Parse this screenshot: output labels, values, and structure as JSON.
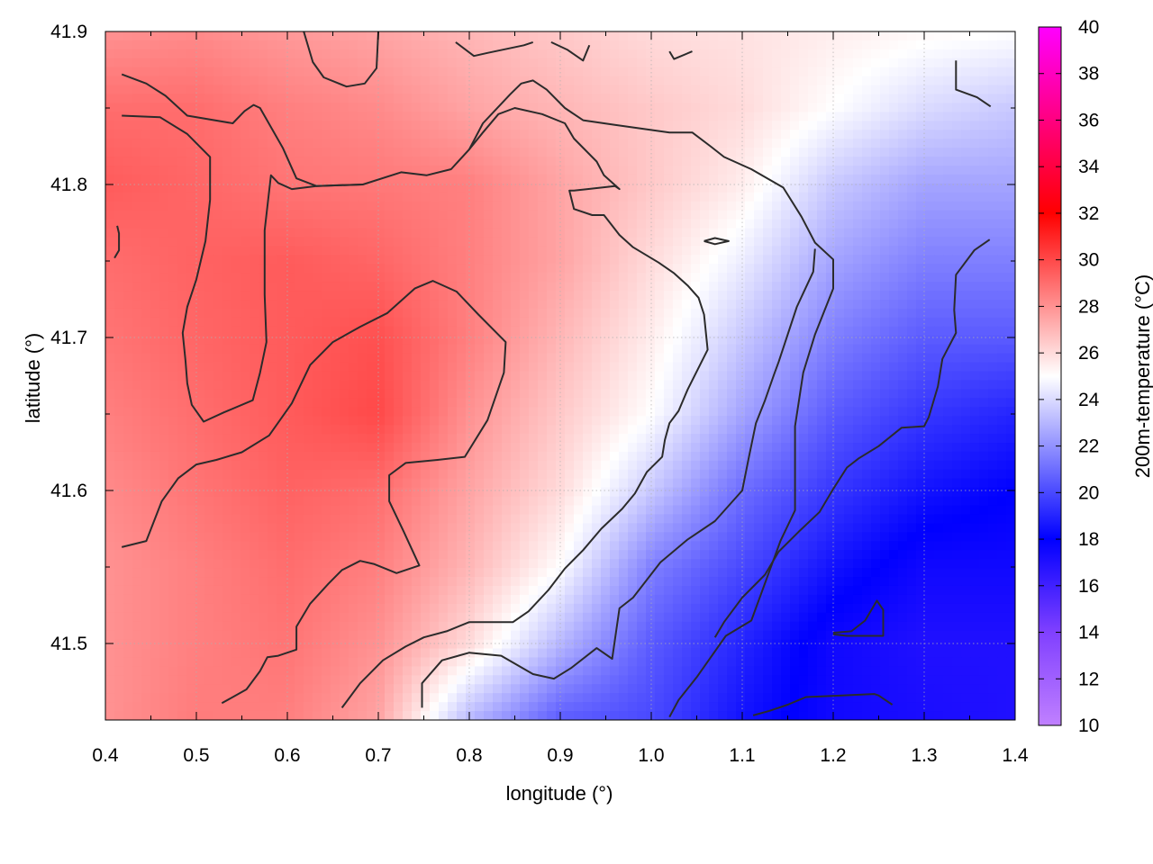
{
  "chart_data": {
    "type": "heatmap",
    "xlabel": "longitude (°)",
    "ylabel": "latitude (°)",
    "colorbar_label": "200m-temperature (°C)",
    "xlim": [
      0.4,
      1.4
    ],
    "ylim": [
      41.45,
      41.9
    ],
    "x_ticks": [
      {
        "value": 0.4,
        "label": "0.4"
      },
      {
        "value": 0.5,
        "label": "0.5"
      },
      {
        "value": 0.6,
        "label": "0.6"
      },
      {
        "value": 0.7,
        "label": "0.7"
      },
      {
        "value": 0.8,
        "label": "0.8"
      },
      {
        "value": 0.9,
        "label": "0.9"
      },
      {
        "value": 1.0,
        "label": "1.0"
      },
      {
        "value": 1.1,
        "label": "1.1"
      },
      {
        "value": 1.2,
        "label": "1.2"
      },
      {
        "value": 1.3,
        "label": "1.3"
      },
      {
        "value": 1.4,
        "label": "1.4"
      }
    ],
    "y_ticks": [
      {
        "value": 41.5,
        "label": "41.5"
      },
      {
        "value": 41.6,
        "label": "41.6"
      },
      {
        "value": 41.7,
        "label": "41.7"
      },
      {
        "value": 41.8,
        "label": "41.8"
      },
      {
        "value": 41.9,
        "label": "41.9"
      }
    ],
    "colorbar": {
      "range": [
        10,
        40
      ],
      "ticks": [
        {
          "value": 10,
          "label": "10"
        },
        {
          "value": 12,
          "label": "12"
        },
        {
          "value": 14,
          "label": "14"
        },
        {
          "value": 16,
          "label": "16"
        },
        {
          "value": 18,
          "label": "18"
        },
        {
          "value": 20,
          "label": "20"
        },
        {
          "value": 22,
          "label": "22"
        },
        {
          "value": 24,
          "label": "24"
        },
        {
          "value": 26,
          "label": "26"
        },
        {
          "value": 28,
          "label": "28"
        },
        {
          "value": 30,
          "label": "30"
        },
        {
          "value": 32,
          "label": "32"
        },
        {
          "value": 34,
          "label": "34"
        },
        {
          "value": 36,
          "label": "36"
        },
        {
          "value": 38,
          "label": "38"
        },
        {
          "value": 40,
          "label": "40"
        }
      ],
      "stops": [
        {
          "value": 10,
          "color": "#c080ff"
        },
        {
          "value": 14,
          "color": "#8040ff"
        },
        {
          "value": 18,
          "color": "#0000ff"
        },
        {
          "value": 25,
          "color": "#ffffff"
        },
        {
          "value": 32,
          "color": "#ff0000"
        },
        {
          "value": 36,
          "color": "#ff0080"
        },
        {
          "value": 40,
          "color": "#ff00ff"
        }
      ]
    },
    "grid": true,
    "temperature_field": {
      "x": [
        0.4,
        0.5,
        0.6,
        0.7,
        0.8,
        0.9,
        1.0,
        1.1,
        1.2,
        1.3,
        1.4
      ],
      "y": [
        41.45,
        41.5,
        41.55,
        41.6,
        41.65,
        41.7,
        41.75,
        41.8,
        41.85,
        41.9
      ],
      "values": [
        [
          28.0,
          28.6,
          28.5,
          27.5,
          23.0,
          20.5,
          20.0,
          18.5,
          17.5,
          17.2,
          17.0
        ],
        [
          28.0,
          28.5,
          28.8,
          28.0,
          26.0,
          23.0,
          20.5,
          19.0,
          17.5,
          17.0,
          17.0
        ],
        [
          28.0,
          28.5,
          29.0,
          28.5,
          27.0,
          25.0,
          21.5,
          20.0,
          18.5,
          17.5,
          17.5
        ],
        [
          28.2,
          28.8,
          29.3,
          29.0,
          27.5,
          26.0,
          23.5,
          21.0,
          19.5,
          18.5,
          18.0
        ],
        [
          28.5,
          29.0,
          29.5,
          30.0,
          28.0,
          26.5,
          25.0,
          22.5,
          20.5,
          19.5,
          19.0
        ],
        [
          28.8,
          29.2,
          29.5,
          29.8,
          28.5,
          27.0,
          25.5,
          23.5,
          21.5,
          20.5,
          20.5
        ],
        [
          29.0,
          29.3,
          29.5,
          29.2,
          28.5,
          27.5,
          26.0,
          24.5,
          22.5,
          21.5,
          21.5
        ],
        [
          29.5,
          29.2,
          28.8,
          28.7,
          28.5,
          27.5,
          26.5,
          25.5,
          23.5,
          22.5,
          22.5
        ],
        [
          29.0,
          29.0,
          28.5,
          28.2,
          27.5,
          27.0,
          26.5,
          26.0,
          25.0,
          24.0,
          23.5
        ],
        [
          28.0,
          28.2,
          27.8,
          27.5,
          27.0,
          26.5,
          26.0,
          25.8,
          25.5,
          25.2,
          25.0
        ]
      ]
    },
    "contours": [
      [
        [
          0.418,
          41.872
        ],
        [
          0.445,
          41.866
        ],
        [
          0.466,
          41.858
        ],
        [
          0.49,
          41.845
        ],
        [
          0.54,
          41.84
        ],
        [
          0.553,
          41.848
        ],
        [
          0.563,
          41.852
        ],
        [
          0.57,
          41.85
        ],
        [
          0.595,
          41.824
        ],
        [
          0.61,
          41.804
        ],
        [
          0.632,
          41.799
        ],
        [
          0.683,
          41.8
        ],
        [
          0.725,
          41.808
        ],
        [
          0.753,
          41.806
        ],
        [
          0.78,
          41.81
        ],
        [
          0.8,
          41.823
        ],
        [
          0.815,
          41.84
        ],
        [
          0.845,
          41.859
        ],
        [
          0.857,
          41.866
        ],
        [
          0.87,
          41.868
        ],
        [
          0.885,
          41.862
        ],
        [
          0.905,
          41.85
        ],
        [
          0.925,
          41.842
        ],
        [
          0.96,
          41.839
        ],
        [
          1.02,
          41.834
        ],
        [
          1.045,
          41.834
        ],
        [
          1.065,
          41.825
        ],
        [
          1.08,
          41.818
        ],
        [
          1.11,
          41.81
        ],
        [
          1.145,
          41.798
        ],
        [
          1.165,
          41.779
        ],
        [
          1.18,
          41.762
        ],
        [
          1.2,
          41.751
        ],
        [
          1.2,
          41.732
        ],
        [
          1.18,
          41.702
        ],
        [
          1.167,
          41.677
        ],
        [
          1.158,
          41.642
        ],
        [
          1.158,
          41.587
        ],
        [
          1.142,
          41.567
        ],
        [
          1.11,
          41.515
        ],
        [
          1.082,
          41.505
        ],
        [
          1.05,
          41.478
        ],
        [
          1.03,
          41.463
        ],
        [
          1.02,
          41.452
        ]
      ],
      [
        [
          0.418,
          41.845
        ],
        [
          0.46,
          41.844
        ],
        [
          0.49,
          41.833
        ],
        [
          0.515,
          41.818
        ],
        [
          0.515,
          41.79
        ],
        [
          0.51,
          41.763
        ],
        [
          0.5,
          41.738
        ],
        [
          0.49,
          41.72
        ],
        [
          0.485,
          41.703
        ],
        [
          0.488,
          41.685
        ],
        [
          0.49,
          41.67
        ],
        [
          0.495,
          41.656
        ],
        [
          0.508,
          41.645
        ],
        [
          0.53,
          41.651
        ],
        [
          0.562,
          41.659
        ],
        [
          0.57,
          41.677
        ],
        [
          0.577,
          41.697
        ],
        [
          0.575,
          41.728
        ],
        [
          0.575,
          41.77
        ],
        [
          0.582,
          41.806
        ],
        [
          0.59,
          41.801
        ],
        [
          0.605,
          41.797
        ],
        [
          0.632,
          41.799
        ],
        [
          0.683,
          41.8
        ]
      ],
      [
        [
          0.528,
          41.461
        ],
        [
          0.555,
          41.47
        ],
        [
          0.57,
          41.482
        ],
        [
          0.578,
          41.491
        ],
        [
          0.59,
          41.492
        ],
        [
          0.61,
          41.496
        ],
        [
          0.61,
          41.511
        ],
        [
          0.625,
          41.526
        ],
        [
          0.645,
          41.539
        ],
        [
          0.66,
          41.548
        ],
        [
          0.68,
          41.554
        ],
        [
          0.695,
          41.552
        ],
        [
          0.72,
          41.546
        ],
        [
          0.745,
          41.551
        ],
        [
          0.728,
          41.573
        ],
        [
          0.712,
          41.593
        ],
        [
          0.712,
          41.61
        ],
        [
          0.73,
          41.618
        ],
        [
          0.765,
          41.62
        ],
        [
          0.795,
          41.622
        ],
        [
          0.82,
          41.646
        ],
        [
          0.838,
          41.677
        ],
        [
          0.84,
          41.697
        ],
        [
          0.81,
          41.715
        ],
        [
          0.786,
          41.73
        ],
        [
          0.76,
          41.737
        ],
        [
          0.74,
          41.732
        ],
        [
          0.71,
          41.716
        ],
        [
          0.68,
          41.707
        ],
        [
          0.65,
          41.697
        ],
        [
          0.625,
          41.682
        ],
        [
          0.605,
          41.657
        ],
        [
          0.58,
          41.636
        ],
        [
          0.55,
          41.625
        ],
        [
          0.522,
          41.62
        ],
        [
          0.5,
          41.617
        ],
        [
          0.48,
          41.608
        ],
        [
          0.462,
          41.593
        ],
        [
          0.445,
          41.567
        ],
        [
          0.418,
          41.563
        ]
      ],
      [
        [
          0.66,
          41.458
        ],
        [
          0.68,
          41.474
        ],
        [
          0.705,
          41.489
        ],
        [
          0.73,
          41.498
        ],
        [
          0.75,
          41.504
        ],
        [
          0.775,
          41.508
        ],
        [
          0.8,
          41.514
        ],
        [
          0.848,
          41.514
        ],
        [
          0.865,
          41.521
        ],
        [
          0.887,
          41.535
        ],
        [
          0.905,
          41.549
        ],
        [
          0.925,
          41.561
        ],
        [
          0.945,
          41.575
        ],
        [
          0.968,
          41.588
        ],
        [
          0.982,
          41.598
        ],
        [
          0.995,
          41.612
        ],
        [
          1.012,
          41.622
        ],
        [
          1.015,
          41.633
        ],
        [
          1.02,
          41.644
        ],
        [
          1.03,
          41.652
        ],
        [
          1.04,
          41.666
        ],
        [
          1.062,
          41.692
        ],
        [
          1.058,
          41.715
        ],
        [
          1.052,
          41.726
        ],
        [
          1.04,
          41.734
        ],
        [
          1.025,
          41.742
        ],
        [
          1.008,
          41.749
        ],
        [
          0.98,
          41.759
        ],
        [
          0.965,
          41.767
        ],
        [
          0.948,
          41.78
        ],
        [
          0.935,
          41.78
        ],
        [
          0.915,
          41.784
        ],
        [
          0.91,
          41.796
        ],
        [
          0.915,
          41.796
        ],
        [
          0.93,
          41.797
        ],
        [
          0.96,
          41.799
        ],
        [
          0.965,
          41.797
        ],
        [
          0.948,
          41.806
        ],
        [
          0.94,
          41.815
        ],
        [
          0.915,
          41.83
        ],
        [
          0.905,
          41.84
        ],
        [
          0.88,
          41.846
        ],
        [
          0.85,
          41.85
        ],
        [
          0.832,
          41.846
        ],
        [
          0.815,
          41.834
        ],
        [
          0.8,
          41.823
        ]
      ],
      [
        [
          0.748,
          41.458
        ],
        [
          0.748,
          41.474
        ],
        [
          0.77,
          41.489
        ],
        [
          0.8,
          41.494
        ],
        [
          0.835,
          41.492
        ],
        [
          0.87,
          41.48
        ],
        [
          0.893,
          41.477
        ],
        [
          0.912,
          41.484
        ],
        [
          0.94,
          41.497
        ],
        [
          0.957,
          41.49
        ],
        [
          0.965,
          41.523
        ],
        [
          0.98,
          41.53
        ],
        [
          1.01,
          41.553
        ],
        [
          1.04,
          41.568
        ],
        [
          1.07,
          41.58
        ],
        [
          1.1,
          41.6
        ],
        [
          1.107,
          41.621
        ],
        [
          1.115,
          41.644
        ],
        [
          1.125,
          41.659
        ],
        [
          1.135,
          41.676
        ],
        [
          1.14,
          41.684
        ],
        [
          1.16,
          41.72
        ],
        [
          1.178,
          41.743
        ],
        [
          1.18,
          41.758
        ]
      ],
      [
        [
          1.112,
          41.453
        ],
        [
          1.13,
          41.456
        ],
        [
          1.15,
          41.46
        ],
        [
          1.17,
          41.465
        ],
        [
          1.21,
          41.466
        ],
        [
          1.245,
          41.467
        ],
        [
          1.25,
          41.466
        ],
        [
          1.265,
          41.46
        ]
      ],
      [
        [
          1.2,
          41.507
        ],
        [
          1.22,
          41.508
        ],
        [
          1.235,
          41.515
        ],
        [
          1.248,
          41.528
        ],
        [
          1.255,
          41.522
        ],
        [
          1.255,
          41.505
        ],
        [
          1.215,
          41.505
        ],
        [
          1.2,
          41.506
        ]
      ],
      [
        [
          1.07,
          41.504
        ],
        [
          1.08,
          41.514
        ],
        [
          1.1,
          41.53
        ],
        [
          1.125,
          41.545
        ],
        [
          1.14,
          41.56
        ],
        [
          1.162,
          41.573
        ],
        [
          1.185,
          41.586
        ],
        [
          1.2,
          41.601
        ],
        [
          1.215,
          41.615
        ],
        [
          1.228,
          41.621
        ],
        [
          1.25,
          41.629
        ],
        [
          1.275,
          41.641
        ],
        [
          1.3,
          41.642
        ],
        [
          1.305,
          41.648
        ],
        [
          1.315,
          41.668
        ],
        [
          1.32,
          41.686
        ],
        [
          1.335,
          41.703
        ],
        [
          1.333,
          41.718
        ],
        [
          1.335,
          41.741
        ],
        [
          1.355,
          41.757
        ],
        [
          1.372,
          41.764
        ]
      ],
      [
        [
          1.335,
          41.881
        ],
        [
          1.335,
          41.862
        ],
        [
          1.358,
          41.857
        ],
        [
          1.373,
          41.851
        ]
      ],
      [
        [
          0.618,
          41.9
        ],
        [
          0.628,
          41.88
        ],
        [
          0.64,
          41.87
        ],
        [
          0.665,
          41.864
        ],
        [
          0.685,
          41.866
        ],
        [
          0.698,
          41.876
        ],
        [
          0.7,
          41.9
        ]
      ],
      [
        [
          0.785,
          41.893
        ],
        [
          0.805,
          41.884
        ],
        [
          0.82,
          41.886
        ],
        [
          0.86,
          41.891
        ],
        [
          0.87,
          41.893
        ]
      ],
      [
        [
          0.89,
          41.893
        ],
        [
          0.908,
          41.888
        ],
        [
          0.925,
          41.881
        ],
        [
          0.932,
          41.891
        ]
      ],
      [
        [
          1.02,
          41.887
        ],
        [
          1.025,
          41.882
        ],
        [
          1.045,
          41.887
        ]
      ],
      [
        [
          1.058,
          41.763
        ],
        [
          1.07,
          41.765
        ],
        [
          1.085,
          41.763
        ],
        [
          1.07,
          41.761
        ],
        [
          1.058,
          41.763
        ]
      ],
      [
        [
          0.413,
          41.773
        ],
        [
          0.415,
          41.768
        ],
        [
          0.415,
          41.757
        ],
        [
          0.41,
          41.752
        ]
      ]
    ]
  }
}
